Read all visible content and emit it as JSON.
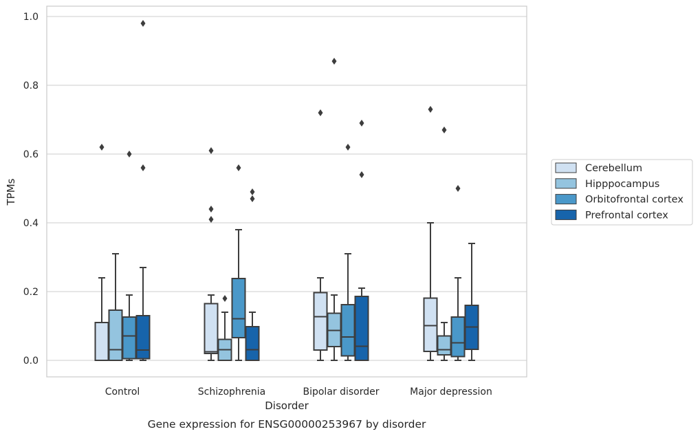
{
  "chart_data": {
    "type": "box",
    "xlabel": "Disorder",
    "ylabel": "TPMs",
    "caption": "Gene expression for ENSG00000253967 by disorder",
    "ylim": [
      -0.045,
      1.03
    ],
    "yticks": [
      0.0,
      0.2,
      0.4,
      0.6,
      0.8,
      1.0
    ],
    "ytick_labels": [
      "0.0",
      "0.2",
      "0.4",
      "0.6",
      "0.8",
      "1.0"
    ],
    "grid": "horizontal",
    "legend_position": "right",
    "categories": [
      "Control",
      "Schizophrenia",
      "Bipolar disorder",
      "Major depression"
    ],
    "series": [
      {
        "name": "Cerebellum",
        "color": "#d0e1f2",
        "boxes": [
          {
            "whisker_low": 0.0,
            "q1": 0.0,
            "median": 0.0,
            "q3": 0.11,
            "whisker_high": 0.24,
            "outliers": [
              0.62
            ]
          },
          {
            "whisker_low": 0.0,
            "q1": 0.02,
            "median": 0.025,
            "q3": 0.165,
            "whisker_high": 0.19,
            "outliers": [
              0.61,
              0.44,
              0.41
            ]
          },
          {
            "whisker_low": 0.0,
            "q1": 0.03,
            "median": 0.127,
            "q3": 0.197,
            "whisker_high": 0.24,
            "outliers": [
              0.72
            ]
          },
          {
            "whisker_low": 0.0,
            "q1": 0.026,
            "median": 0.101,
            "q3": 0.181,
            "whisker_high": 0.4,
            "outliers": [
              0.73
            ]
          }
        ]
      },
      {
        "name": "Hipppocampus",
        "color": "#94c4df",
        "boxes": [
          {
            "whisker_low": 0.0,
            "q1": 0.0,
            "median": 0.031,
            "q3": 0.146,
            "whisker_high": 0.31,
            "outliers": []
          },
          {
            "whisker_low": 0.0,
            "q1": 0.0,
            "median": 0.031,
            "q3": 0.061,
            "whisker_high": 0.14,
            "outliers": [
              0.18
            ]
          },
          {
            "whisker_low": 0.0,
            "q1": 0.04,
            "median": 0.087,
            "q3": 0.137,
            "whisker_high": 0.19,
            "outliers": [
              0.87
            ]
          },
          {
            "whisker_low": 0.0,
            "q1": 0.016,
            "median": 0.031,
            "q3": 0.071,
            "whisker_high": 0.11,
            "outliers": [
              0.67
            ]
          }
        ]
      },
      {
        "name": "Orbitofrontal cortex",
        "color": "#4a98c9",
        "boxes": [
          {
            "whisker_low": 0.0,
            "q1": 0.005,
            "median": 0.071,
            "q3": 0.126,
            "whisker_high": 0.19,
            "outliers": [
              0.6
            ]
          },
          {
            "whisker_low": 0.0,
            "q1": 0.066,
            "median": 0.121,
            "q3": 0.238,
            "whisker_high": 0.38,
            "outliers": [
              0.56
            ]
          },
          {
            "whisker_low": 0.0,
            "q1": 0.013,
            "median": 0.068,
            "q3": 0.162,
            "whisker_high": 0.31,
            "outliers": [
              0.62
            ]
          },
          {
            "whisker_low": 0.0,
            "q1": 0.011,
            "median": 0.051,
            "q3": 0.126,
            "whisker_high": 0.24,
            "outliers": [
              0.5
            ]
          }
        ]
      },
      {
        "name": "Prefrontal cortex",
        "color": "#1764ab",
        "boxes": [
          {
            "whisker_low": 0.0,
            "q1": 0.005,
            "median": 0.03,
            "q3": 0.13,
            "whisker_high": 0.27,
            "outliers": [
              0.98,
              0.56
            ]
          },
          {
            "whisker_low": 0.0,
            "q1": 0.0,
            "median": 0.031,
            "q3": 0.098,
            "whisker_high": 0.14,
            "outliers": [
              0.49,
              0.47
            ]
          },
          {
            "whisker_low": 0.0,
            "q1": 0.0,
            "median": 0.041,
            "q3": 0.186,
            "whisker_high": 0.21,
            "outliers": [
              0.69,
              0.54
            ]
          },
          {
            "whisker_low": 0.0,
            "q1": 0.032,
            "median": 0.097,
            "q3": 0.16,
            "whisker_high": 0.34,
            "outliers": []
          }
        ]
      }
    ]
  }
}
